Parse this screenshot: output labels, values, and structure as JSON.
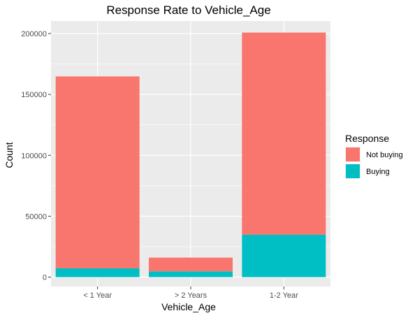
{
  "chart_data": {
    "type": "bar",
    "stacked": true,
    "title": "Response Rate to Vehicle_Age",
    "xlabel": "Vehicle_Age",
    "ylabel": "Count",
    "categories": [
      "< 1 Year",
      "> 2 Years",
      "1-2 Year"
    ],
    "ylim": [
      0,
      200000
    ],
    "yticks": [
      0,
      50000,
      100000,
      150000,
      200000
    ],
    "grid": true,
    "legend": {
      "title": "Response",
      "placement": "right"
    },
    "series": [
      {
        "name": "Buying",
        "color": "#00bfc4",
        "values": [
          7200,
          4700,
          34800
        ]
      },
      {
        "name": "Not buying",
        "color": "#f8766d",
        "values": [
          157600,
          11300,
          166000
        ]
      }
    ],
    "legend_order": [
      "Not buying",
      "Buying"
    ]
  }
}
